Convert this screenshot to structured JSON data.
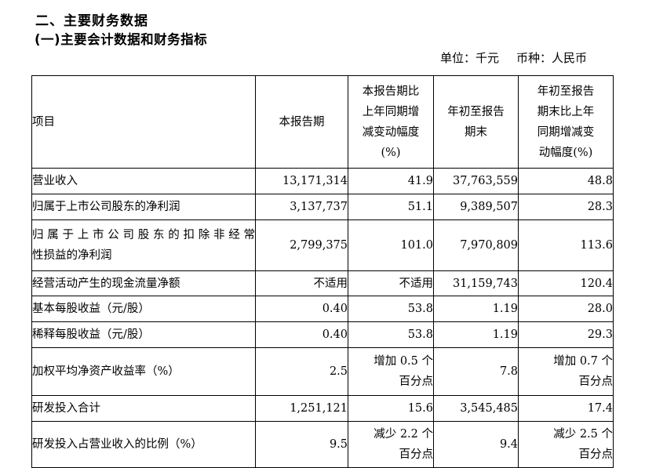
{
  "page": {
    "section_title": "二、主要财务数据",
    "subsection_title": "(一)主要会计数据和财务指标",
    "unit_label": "单位：千元",
    "currency_label": "币种：人民币"
  },
  "table": {
    "headers": {
      "item": "项目",
      "current_period": "本报告期",
      "current_period_yoy": "本报告期比\n上年同期增\n减变动幅度\n(%)",
      "ytd": "年初至报告\n期末",
      "ytd_yoy": "年初至报告\n期末比上年\n同期增减变\n动幅度(%)"
    },
    "rows": [
      {
        "item": "营业收入",
        "current": "13,171,314",
        "current_yoy": "41.9",
        "ytd": "37,763,559",
        "ytd_yoy": "48.8"
      },
      {
        "item": "归属于上市公司股东的净利润",
        "current": "3,137,737",
        "current_yoy": "51.1",
        "ytd": "9,389,507",
        "ytd_yoy": "28.3"
      },
      {
        "item": "归属于上市公司股东的扣除非经常\n性损益的净利润",
        "current": "2,799,375",
        "current_yoy": "101.0",
        "ytd": "7,970,809",
        "ytd_yoy": "113.6"
      },
      {
        "item": "经营活动产生的现金流量净额",
        "current": "不适用",
        "current_yoy": "不适用",
        "ytd": "31,159,743",
        "ytd_yoy": "120.4"
      },
      {
        "item": "基本每股收益（元/股）",
        "current": "0.40",
        "current_yoy": "53.8",
        "ytd": "1.19",
        "ytd_yoy": "28.0"
      },
      {
        "item": "稀释每股收益（元/股）",
        "current": "0.40",
        "current_yoy": "53.8",
        "ytd": "1.19",
        "ytd_yoy": "29.3"
      },
      {
        "item": "加权平均净资产收益率（%）",
        "current": "2.5",
        "current_yoy": "增加 0.5 个\n百分点",
        "ytd": "7.8",
        "ytd_yoy": "增加 0.7 个\n百分点"
      },
      {
        "item": "研发投入合计",
        "current": "1,251,121",
        "current_yoy": "15.6",
        "ytd": "3,545,485",
        "ytd_yoy": "17.4"
      },
      {
        "item": "研发投入占营业收入的比例（%）",
        "current": "9.5",
        "current_yoy": "减少 2.2 个\n百分点",
        "ytd": "9.4",
        "ytd_yoy": "减少 2.5 个\n百分点"
      }
    ]
  }
}
